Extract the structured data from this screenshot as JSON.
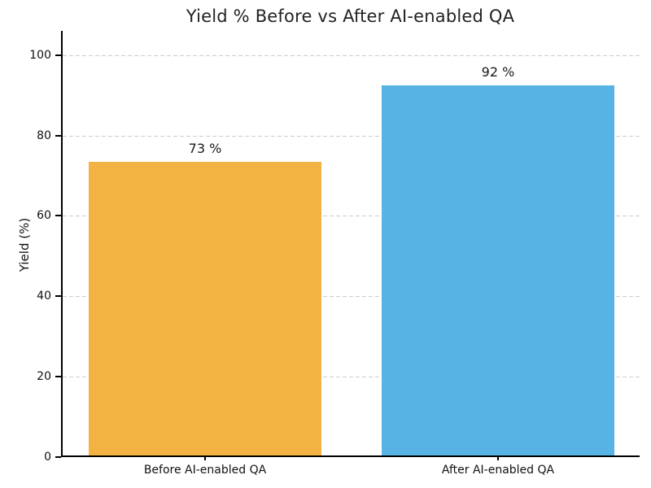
{
  "chart_data": {
    "type": "bar",
    "title": "Yield % Before vs After AI-enabled QA",
    "xlabel": "",
    "ylabel": "Yield (%)",
    "categories": [
      "Before AI-enabled QA",
      "After AI-enabled QA"
    ],
    "values": [
      73,
      92
    ],
    "value_labels": [
      "73 %",
      "92 %"
    ],
    "bar_colors": [
      "#F2B342",
      "#56B3E3"
    ],
    "ylim": [
      0,
      106
    ],
    "yticks": [
      0,
      20,
      40,
      60,
      80,
      100
    ],
    "grid": "horizontal dashed gridlines at y ticks, drawn behind bars",
    "gridline_color": "#cccccc",
    "axis_color": "#000000",
    "background_color": "#ffffff",
    "legend_position": "none"
  }
}
